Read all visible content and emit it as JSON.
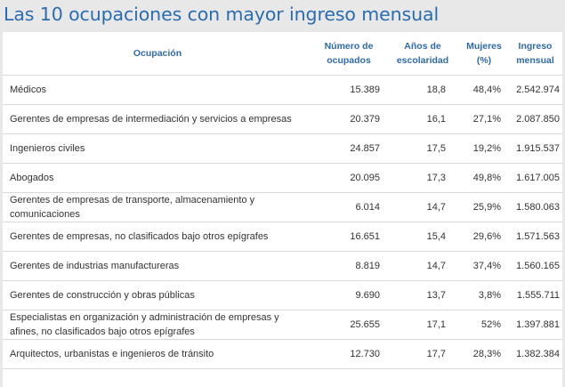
{
  "title": "Las 10 ocupaciones con mayor ingreso mensual",
  "columns": [
    {
      "label": "Ocupación"
    },
    {
      "label": "Número de ocupados"
    },
    {
      "label": "Años de escolaridad"
    },
    {
      "label": "Mujeres (%)"
    },
    {
      "label": "Ingreso mensual"
    }
  ],
  "rows": [
    {
      "ocupacion": "Médicos",
      "ocupados": "15.389",
      "escolaridad": "18,8",
      "mujeres": "48,4%",
      "ingreso": "2.542.974"
    },
    {
      "ocupacion": "Gerentes de empresas de intermediación y servicios a empresas",
      "ocupados": "20.379",
      "escolaridad": "16,1",
      "mujeres": "27,1%",
      "ingreso": "2.087.850"
    },
    {
      "ocupacion": "Ingenieros civiles",
      "ocupados": "24.857",
      "escolaridad": "17,5",
      "mujeres": "19,2%",
      "ingreso": "1.915.537"
    },
    {
      "ocupacion": "Abogados",
      "ocupados": "20.095",
      "escolaridad": "17,3",
      "mujeres": "49,8%",
      "ingreso": "1.617.005"
    },
    {
      "ocupacion": "Gerentes de empresas de transporte, almacenamiento y comunicaciones",
      "ocupados": "6.014",
      "escolaridad": "14,7",
      "mujeres": "25,9%",
      "ingreso": "1.580.063"
    },
    {
      "ocupacion": "Gerentes de empresas, no clasificados bajo otros epígrafes",
      "ocupados": "16.651",
      "escolaridad": "15,4",
      "mujeres": "29,6%",
      "ingreso": "1.571.563"
    },
    {
      "ocupacion": "Gerentes de industrias manufactureras",
      "ocupados": "8.819",
      "escolaridad": "14,7",
      "mujeres": "37,4%",
      "ingreso": "1.560.165"
    },
    {
      "ocupacion": "Gerentes de construcción y obras públicas",
      "ocupados": "9.690",
      "escolaridad": "13,7",
      "mujeres": "3,8%",
      "ingreso": "1.555.711"
    },
    {
      "ocupacion": "Especialistas en organización y administración de empresas y afines, no clasificados bajo otros epígrafes",
      "ocupados": "25.655",
      "escolaridad": "17,1",
      "mujeres": "52%",
      "ingreso": "1.397.881"
    },
    {
      "ocupacion": "Arquitectos, urbanistas e ingenieros de tránsito",
      "ocupados": "12.730",
      "escolaridad": "17,7",
      "mujeres": "28,3%",
      "ingreso": "1.382.384"
    }
  ],
  "colors": {
    "title": "#2a6cb0",
    "header": "#2f6aaa",
    "background": "#e8e8e8",
    "rule": "#d9d9d9"
  }
}
